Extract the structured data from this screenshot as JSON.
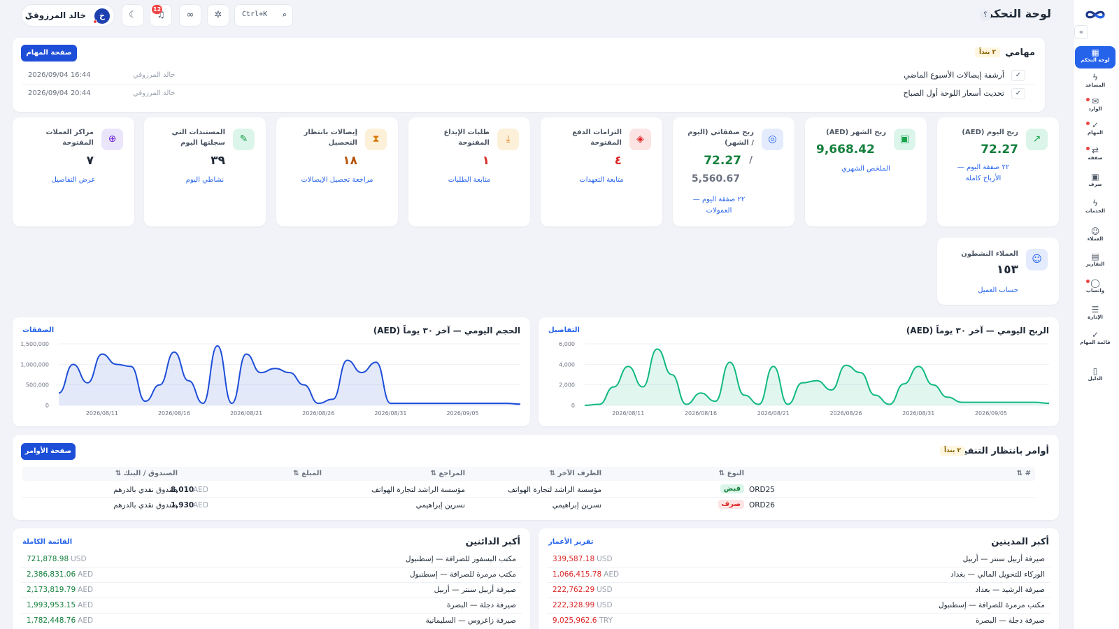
{
  "header": {
    "page_title": "لوحة التحكم",
    "help": "؟",
    "search_shortcut": "Ctrl+K",
    "notifications_count": "12",
    "user_name": "خالد المرزوقي",
    "user_initial": "خ"
  },
  "sidebar": {
    "collapse": "«",
    "items": [
      {
        "label": "لوحة التحكم",
        "icon": "grid-icon",
        "glyph": "▦"
      },
      {
        "label": "المساعد",
        "icon": "bolt-icon",
        "glyph": "ϟ"
      },
      {
        "label": "الوارد",
        "icon": "inbox-icon",
        "glyph": "✉"
      },
      {
        "label": "المهام",
        "icon": "check-icon",
        "glyph": "✓"
      },
      {
        "label": "صفقة",
        "icon": "exchange-icon",
        "glyph": "⇄"
      },
      {
        "label": "صرف",
        "icon": "cash-icon",
        "glyph": "▣"
      },
      {
        "label": "الخدمات",
        "icon": "bolt-icon",
        "glyph": "ϟ"
      },
      {
        "label": "العملاء",
        "icon": "users-icon",
        "glyph": "☺"
      },
      {
        "label": "التقارير",
        "icon": "document-icon",
        "glyph": "▤"
      },
      {
        "label": "واتساب",
        "icon": "chat-icon",
        "glyph": "◯"
      },
      {
        "label": "الإدارة",
        "icon": "sliders-icon",
        "glyph": "☰"
      },
      {
        "label": "قائمة المهام",
        "icon": "check-icon",
        "glyph": "✓"
      },
      {
        "label": "الدليل",
        "icon": "book-icon",
        "glyph": "▯"
      }
    ]
  },
  "tasks": {
    "title": "مهامي",
    "count_badge": "٢ بنداً",
    "button": "صفحة المهام",
    "items": [
      {
        "text": "أرشفة إيصالات الأسبوع الماضي",
        "by": "خالد المرزوقي",
        "date": "2026/09/04 16:44"
      },
      {
        "text": "تحديث أسعار اللوحة أول الصباح",
        "by": "خالد المرزوقي",
        "date": "2026/09/04 20:44"
      }
    ]
  },
  "kpis": [
    {
      "title": "ربح اليوم (AED)",
      "value": "72.27",
      "link": "٢٢ صفقة اليوم — الأرباح كاملة",
      "icon": "trend-up-icon",
      "glyph": "↗",
      "icon_bg": "#dcf5ea",
      "icon_color": "#16a34a",
      "value_color": "#15803d"
    },
    {
      "title": "ربح الشهر (AED)",
      "value": "9,668.42",
      "link": "الملخص الشهري",
      "icon": "wallet-icon",
      "glyph": "▣",
      "icon_bg": "#dcf5ea",
      "icon_color": "#16a34a",
      "value_color": "#15803d"
    },
    {
      "title": "ربح صفقاتي (اليوم / الشهر)",
      "value": "72.27",
      "value2": "5,560.67",
      "link": "٢٢ صفقة اليوم — العمولات",
      "icon": "target-icon",
      "glyph": "◎",
      "icon_bg": "#e3ebfd",
      "icon_color": "#2563eb",
      "value_color": "#15803d"
    },
    {
      "title": "التزامات الدفع المفتوحة",
      "value": "٤",
      "link": "متابعة التعهدات",
      "icon": "layers-icon",
      "glyph": "◈",
      "icon_bg": "#fde4e4",
      "icon_color": "#dc2626",
      "value_color": "#dc2626"
    },
    {
      "title": "طلبات الإيداع المفتوحة",
      "value": "١",
      "link": "متابعة الطلبات",
      "icon": "download-icon",
      "glyph": "⤓",
      "icon_bg": "#fdf0d9",
      "icon_color": "#d97706",
      "value_color": "#dc2626"
    },
    {
      "title": "إيصالات بانتظار التحصيل",
      "value": "١٨",
      "link": "مراجعة تحصيل الإيصالات",
      "icon": "hourglass-icon",
      "glyph": "⧗",
      "icon_bg": "#fdf0d9",
      "icon_color": "#d97706",
      "value_color": "#b45309"
    },
    {
      "title": "المستندات التي سجلتها اليوم",
      "value": "٣٩",
      "link": "نشاطي اليوم",
      "icon": "pencil-icon",
      "glyph": "✎",
      "icon_bg": "#dcf5ea",
      "icon_color": "#16a34a",
      "value_color": "#1f2937"
    },
    {
      "title": "مراكز العملات المفتوحة",
      "value": "٧",
      "link": "عرض التفاصيل",
      "icon": "globe-icon",
      "glyph": "⊕",
      "icon_bg": "#ebe5fb",
      "icon_color": "#6d28d9",
      "value_color": "#1f2937"
    }
  ],
  "active_clients": {
    "title": "العملاء النشطون",
    "value": "١٥٣",
    "link": "حساب العميل",
    "icon": "users-icon",
    "glyph": "☺",
    "icon_bg": "#e3ebfd",
    "icon_color": "#2563eb"
  },
  "chart_data": [
    {
      "type": "area",
      "title": "الربح اليومي — آخر ٣٠ يوماً (AED)",
      "link": "التفاصيل",
      "color": "#10b981",
      "x_ticks": [
        "2026/08/11",
        "2026/08/16",
        "2026/08/21",
        "2026/08/26",
        "2026/08/31",
        "2026/09/05"
      ],
      "y_ticks": [
        "6,000",
        "4,000",
        "2,000",
        "0"
      ],
      "ylim": [
        0,
        6000
      ],
      "x": [
        "2026/08/08",
        "2026/08/09",
        "2026/08/10",
        "2026/08/11",
        "2026/08/12",
        "2026/08/13",
        "2026/08/14",
        "2026/08/15",
        "2026/08/16",
        "2026/08/17",
        "2026/08/18",
        "2026/08/19",
        "2026/08/20",
        "2026/08/21",
        "2026/08/22",
        "2026/08/23",
        "2026/08/24",
        "2026/08/25",
        "2026/08/26",
        "2026/08/27",
        "2026/08/28",
        "2026/08/29",
        "2026/08/30",
        "2026/08/31",
        "2026/09/01",
        "2026/09/02",
        "2026/09/03",
        "2026/09/04",
        "2026/09/05",
        "2026/09/06",
        "2026/09/07",
        "2026/09/08",
        "2026/09/09"
      ],
      "values": [
        0,
        100,
        1800,
        3800,
        1800,
        5500,
        3000,
        100,
        1200,
        400,
        4200,
        1000,
        100,
        3800,
        100,
        2200,
        2400,
        1500,
        3900,
        3200,
        1000,
        100,
        2100,
        3800,
        2000,
        800,
        300,
        300,
        300,
        300,
        300,
        300,
        200
      ]
    },
    {
      "type": "area",
      "title": "الحجم اليومي — آخر ٣٠ يوماً (AED)",
      "link": "الصفقات",
      "color": "#1d4ed8",
      "x_ticks": [
        "2026/08/11",
        "2026/08/16",
        "2026/08/21",
        "2026/08/26",
        "2026/08/31",
        "2026/09/05"
      ],
      "y_ticks": [
        "1,500,000",
        "1,000,000",
        "500,000",
        "0"
      ],
      "ylim": [
        0,
        1500000
      ],
      "x": [
        "2026/08/08",
        "2026/08/09",
        "2026/08/10",
        "2026/08/11",
        "2026/08/12",
        "2026/08/13",
        "2026/08/14",
        "2026/08/15",
        "2026/08/16",
        "2026/08/17",
        "2026/08/18",
        "2026/08/19",
        "2026/08/20",
        "2026/08/21",
        "2026/08/22",
        "2026/08/23",
        "2026/08/24",
        "2026/08/25",
        "2026/08/26",
        "2026/08/27",
        "2026/08/28",
        "2026/08/29",
        "2026/08/30",
        "2026/08/31",
        "2026/09/01",
        "2026/09/02",
        "2026/09/03",
        "2026/09/04",
        "2026/09/05",
        "2026/09/06",
        "2026/09/07",
        "2026/09/08",
        "2026/09/09"
      ],
      "values": [
        300000,
        1000000,
        550000,
        1250000,
        1000000,
        950000,
        100000,
        500000,
        1300000,
        600000,
        50000,
        1450000,
        50000,
        1250000,
        800000,
        900000,
        800000,
        500000,
        50000,
        150000,
        1100000,
        800000,
        1050000,
        50000,
        50000,
        50000,
        50000,
        50000,
        50000,
        50000,
        50000,
        50000,
        30000
      ]
    }
  ],
  "orders": {
    "title": "أوامر بانتظار التنفيذ",
    "count_badge": "٢ بنداً",
    "button": "صفحة الأوامر",
    "columns": [
      "# ⇅",
      "النوع ⇅",
      "الطرف الآخر ⇅",
      "المراجع ⇅",
      "المبلغ ⇅",
      "الصندوق / البنك ⇅"
    ],
    "rows": [
      {
        "id": "ORD25",
        "type": "قبض",
        "type_color": "#15803d",
        "type_bg": "#dcf5ea",
        "party": "مؤسسة الراشد لتجارة الهواتف",
        "ref": "مؤسسة الراشد لتجارة الهواتف",
        "amount": "8,010",
        "currency": "AED",
        "fund": "صندوق نقدي بالدرهم"
      },
      {
        "id": "ORD26",
        "type": "صرف",
        "type_color": "#dc2626",
        "type_bg": "#fde4e4",
        "party": "نسرين إبراهيمي",
        "ref": "نسرين إبراهيمي",
        "amount": "1,930",
        "currency": "AED",
        "fund": "صندوق نقدي بالدرهم"
      }
    ]
  },
  "debtors": {
    "title": "أكبر المدينين",
    "link": "تقرير الأعمار",
    "rows": [
      {
        "name": "صيرفة أربيل سنتر — أربيل",
        "amount": "339,587.18",
        "currency": "USD"
      },
      {
        "name": "الوركاء للتحويل المالي — بغداد",
        "amount": "1,066,415.78",
        "currency": "AED"
      },
      {
        "name": "صيرفة الرشيد — بغداد",
        "amount": "222,762.29",
        "currency": "USD"
      },
      {
        "name": "مكتب مرمرة للصرافة — إسطنبول",
        "amount": "222,328.99",
        "currency": "USD"
      },
      {
        "name": "صيرفة دجلة — البصرة",
        "amount": "9,025,962.6",
        "currency": "TRY"
      }
    ]
  },
  "creditors": {
    "title": "أكبر الدائنين",
    "link": "القائمة الكاملة",
    "rows": [
      {
        "name": "مكتب البسفور للصرافة — إسطنبول",
        "amount": "721,878.98",
        "currency": "USD"
      },
      {
        "name": "مكتب مرمرة للصرافة — إسطنبول",
        "amount": "2,386,831.06",
        "currency": "AED"
      },
      {
        "name": "صيرفة أربيل سنتر — أربيل",
        "amount": "2,173,819.79",
        "currency": "AED"
      },
      {
        "name": "صيرفة دجلة — البصرة",
        "amount": "1,993,953.15",
        "currency": "AED"
      },
      {
        "name": "صيرفة زاغروس — السليمانية",
        "amount": "1,782,448.76",
        "currency": "AED"
      }
    ]
  },
  "colors": {
    "accent": "#2563eb",
    "primary_button": "#1d4ed8",
    "debit": "#dc2626",
    "credit": "#15803d"
  }
}
